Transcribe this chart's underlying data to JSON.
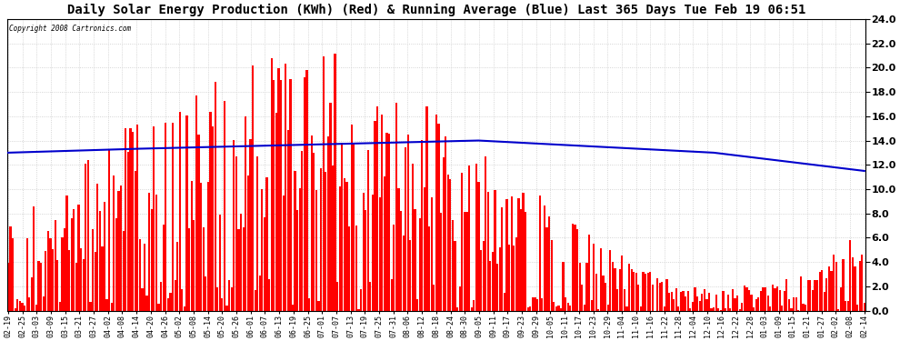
{
  "title": "Daily Solar Energy Production (KWh) (Red) & Running Average (Blue) Last 365 Days Tue Feb 19 06:51",
  "copyright": "Copyright 2008 Cartronics.com",
  "bar_color": "#ff0000",
  "line_color": "#0000cc",
  "bg_color": "#ffffff",
  "plot_bg_color": "#ffffff",
  "ylim": [
    0.0,
    24.0
  ],
  "yticks": [
    0.0,
    2.0,
    4.0,
    6.0,
    8.0,
    10.0,
    12.0,
    14.0,
    16.0,
    18.0,
    20.0,
    22.0,
    24.0
  ],
  "ylabel_fontsize": 8,
  "title_fontsize": 10,
  "grid_color": "#c8c8c8",
  "x_labels": [
    "02-19",
    "02-25",
    "03-03",
    "03-09",
    "03-15",
    "03-21",
    "03-27",
    "04-02",
    "04-08",
    "04-14",
    "04-20",
    "04-26",
    "05-02",
    "05-08",
    "05-14",
    "05-20",
    "05-26",
    "06-01",
    "06-07",
    "06-13",
    "06-19",
    "06-25",
    "07-01",
    "07-07",
    "07-13",
    "07-19",
    "07-25",
    "07-31",
    "08-06",
    "08-12",
    "08-18",
    "08-24",
    "08-30",
    "09-05",
    "09-11",
    "09-17",
    "09-23",
    "09-29",
    "10-05",
    "10-11",
    "10-17",
    "10-23",
    "10-29",
    "11-04",
    "11-10",
    "11-16",
    "11-22",
    "11-28",
    "12-04",
    "12-10",
    "12-16",
    "12-22",
    "12-28",
    "01-03",
    "01-09",
    "01-15",
    "01-21",
    "01-27",
    "02-02",
    "02-08",
    "02-14"
  ],
  "n_bars": 365,
  "seed": 42,
  "running_avg_values": [
    13.0,
    13.05,
    13.1,
    13.15,
    13.2,
    13.25,
    13.28,
    13.3,
    13.32,
    13.34,
    13.36,
    13.38,
    13.4,
    13.42,
    13.44,
    13.46,
    13.48,
    13.5,
    13.52,
    13.54,
    13.56,
    13.58,
    13.6,
    13.62,
    13.64,
    13.66,
    13.68,
    13.7,
    13.72,
    13.74,
    13.76,
    13.78,
    13.8,
    13.82,
    13.84,
    13.85,
    13.86,
    13.87,
    13.88,
    13.89,
    13.9,
    13.91,
    13.92,
    13.93,
    13.94,
    13.95,
    13.96,
    13.97,
    13.98,
    13.99,
    14.0,
    14.0,
    14.0,
    14.0,
    14.0,
    14.0,
    14.0,
    14.0,
    14.0,
    14.0,
    14.0,
    14.0,
    14.0,
    14.0,
    14.0,
    14.0,
    14.0,
    14.0,
    14.0,
    14.0,
    14.0,
    14.0,
    14.0,
    14.0,
    14.0,
    14.0,
    14.0,
    14.0,
    14.0,
    14.0,
    14.0,
    14.0,
    14.0,
    14.0,
    14.0,
    14.0,
    14.0,
    14.0,
    14.0,
    14.0,
    14.0,
    14.0,
    14.0,
    14.0,
    14.0,
    14.0,
    14.0,
    14.0,
    14.0,
    14.0,
    14.0,
    14.0,
    14.0,
    14.0,
    14.0,
    14.0,
    14.0,
    14.0,
    14.0,
    14.0,
    14.0,
    14.0,
    14.0,
    14.0,
    14.0,
    14.0,
    14.0,
    14.0,
    14.0,
    14.0,
    14.0,
    14.0,
    14.0,
    14.0,
    14.0,
    14.0,
    14.0,
    14.0,
    14.0,
    14.0,
    14.0,
    14.0,
    14.0,
    14.0,
    14.0,
    14.0,
    14.0,
    14.0,
    14.0,
    14.0,
    14.0,
    14.0,
    14.0,
    14.0,
    14.0,
    14.0,
    14.0,
    14.0,
    14.0,
    14.0,
    14.0,
    14.0,
    14.0,
    14.0,
    14.0,
    14.0,
    14.0,
    14.0,
    14.0,
    14.0,
    14.0,
    14.0,
    14.0,
    14.0,
    14.0,
    14.0,
    14.0,
    14.0,
    14.0,
    14.0,
    14.0,
    14.0,
    14.0,
    14.0,
    14.0,
    14.0,
    14.0,
    14.0,
    14.0,
    14.0,
    14.0,
    14.0,
    14.0,
    14.0,
    14.0,
    14.0,
    14.0,
    14.0,
    14.0,
    14.0,
    14.0,
    14.0,
    14.0,
    14.0,
    14.0,
    14.0,
    14.0,
    14.0,
    14.0,
    14.0,
    14.0,
    13.98,
    13.96,
    13.94,
    13.92,
    13.9,
    13.88,
    13.86,
    13.84,
    13.82,
    13.8,
    13.78,
    13.76,
    13.74,
    13.72,
    13.7,
    13.68,
    13.66,
    13.64,
    13.62,
    13.6,
    13.58,
    13.56,
    13.54,
    13.52,
    13.5,
    13.48,
    13.46,
    13.44,
    13.42,
    13.4,
    13.38,
    13.36,
    13.34,
    13.32,
    13.3,
    13.28,
    13.26,
    13.24,
    13.22,
    13.2,
    13.18,
    13.16,
    13.14,
    13.12,
    13.1,
    13.08,
    13.06,
    13.04,
    13.02,
    13.0,
    12.98,
    12.96,
    12.94,
    12.92,
    12.9,
    12.88,
    12.86,
    12.84,
    12.82,
    12.8,
    12.78,
    12.76,
    12.74,
    12.72,
    12.7,
    12.68,
    12.66,
    12.64,
    12.62,
    12.6,
    12.58,
    12.56,
    12.54,
    12.52,
    12.5,
    12.48,
    12.46,
    12.44,
    12.42,
    12.4,
    12.38,
    12.36,
    12.34,
    12.32,
    12.3,
    12.28,
    12.26,
    12.24,
    12.22,
    12.2,
    12.18,
    12.16,
    12.14,
    12.12,
    12.1,
    12.08,
    12.06,
    12.04,
    12.02,
    12.0,
    11.98,
    11.96,
    11.94,
    11.92,
    11.9,
    11.88,
    11.86,
    11.84,
    11.82,
    11.8,
    11.78,
    11.76,
    11.74,
    11.72,
    11.7,
    11.68,
    11.66,
    11.64,
    11.62,
    11.6,
    11.58,
    11.56,
    11.54,
    11.52,
    11.5,
    11.48,
    11.46,
    11.44,
    11.42,
    11.4,
    11.38,
    11.36,
    11.34,
    11.32,
    11.3,
    11.28,
    11.26,
    11.24,
    11.22,
    11.2,
    11.18,
    11.16,
    11.14,
    11.12,
    11.1,
    11.08,
    11.06,
    11.04,
    11.02,
    11.0,
    10.98,
    10.96,
    10.94,
    10.92,
    10.9,
    10.88,
    10.86,
    10.84,
    10.82,
    10.8,
    10.78,
    10.76,
    10.74,
    10.72
  ]
}
